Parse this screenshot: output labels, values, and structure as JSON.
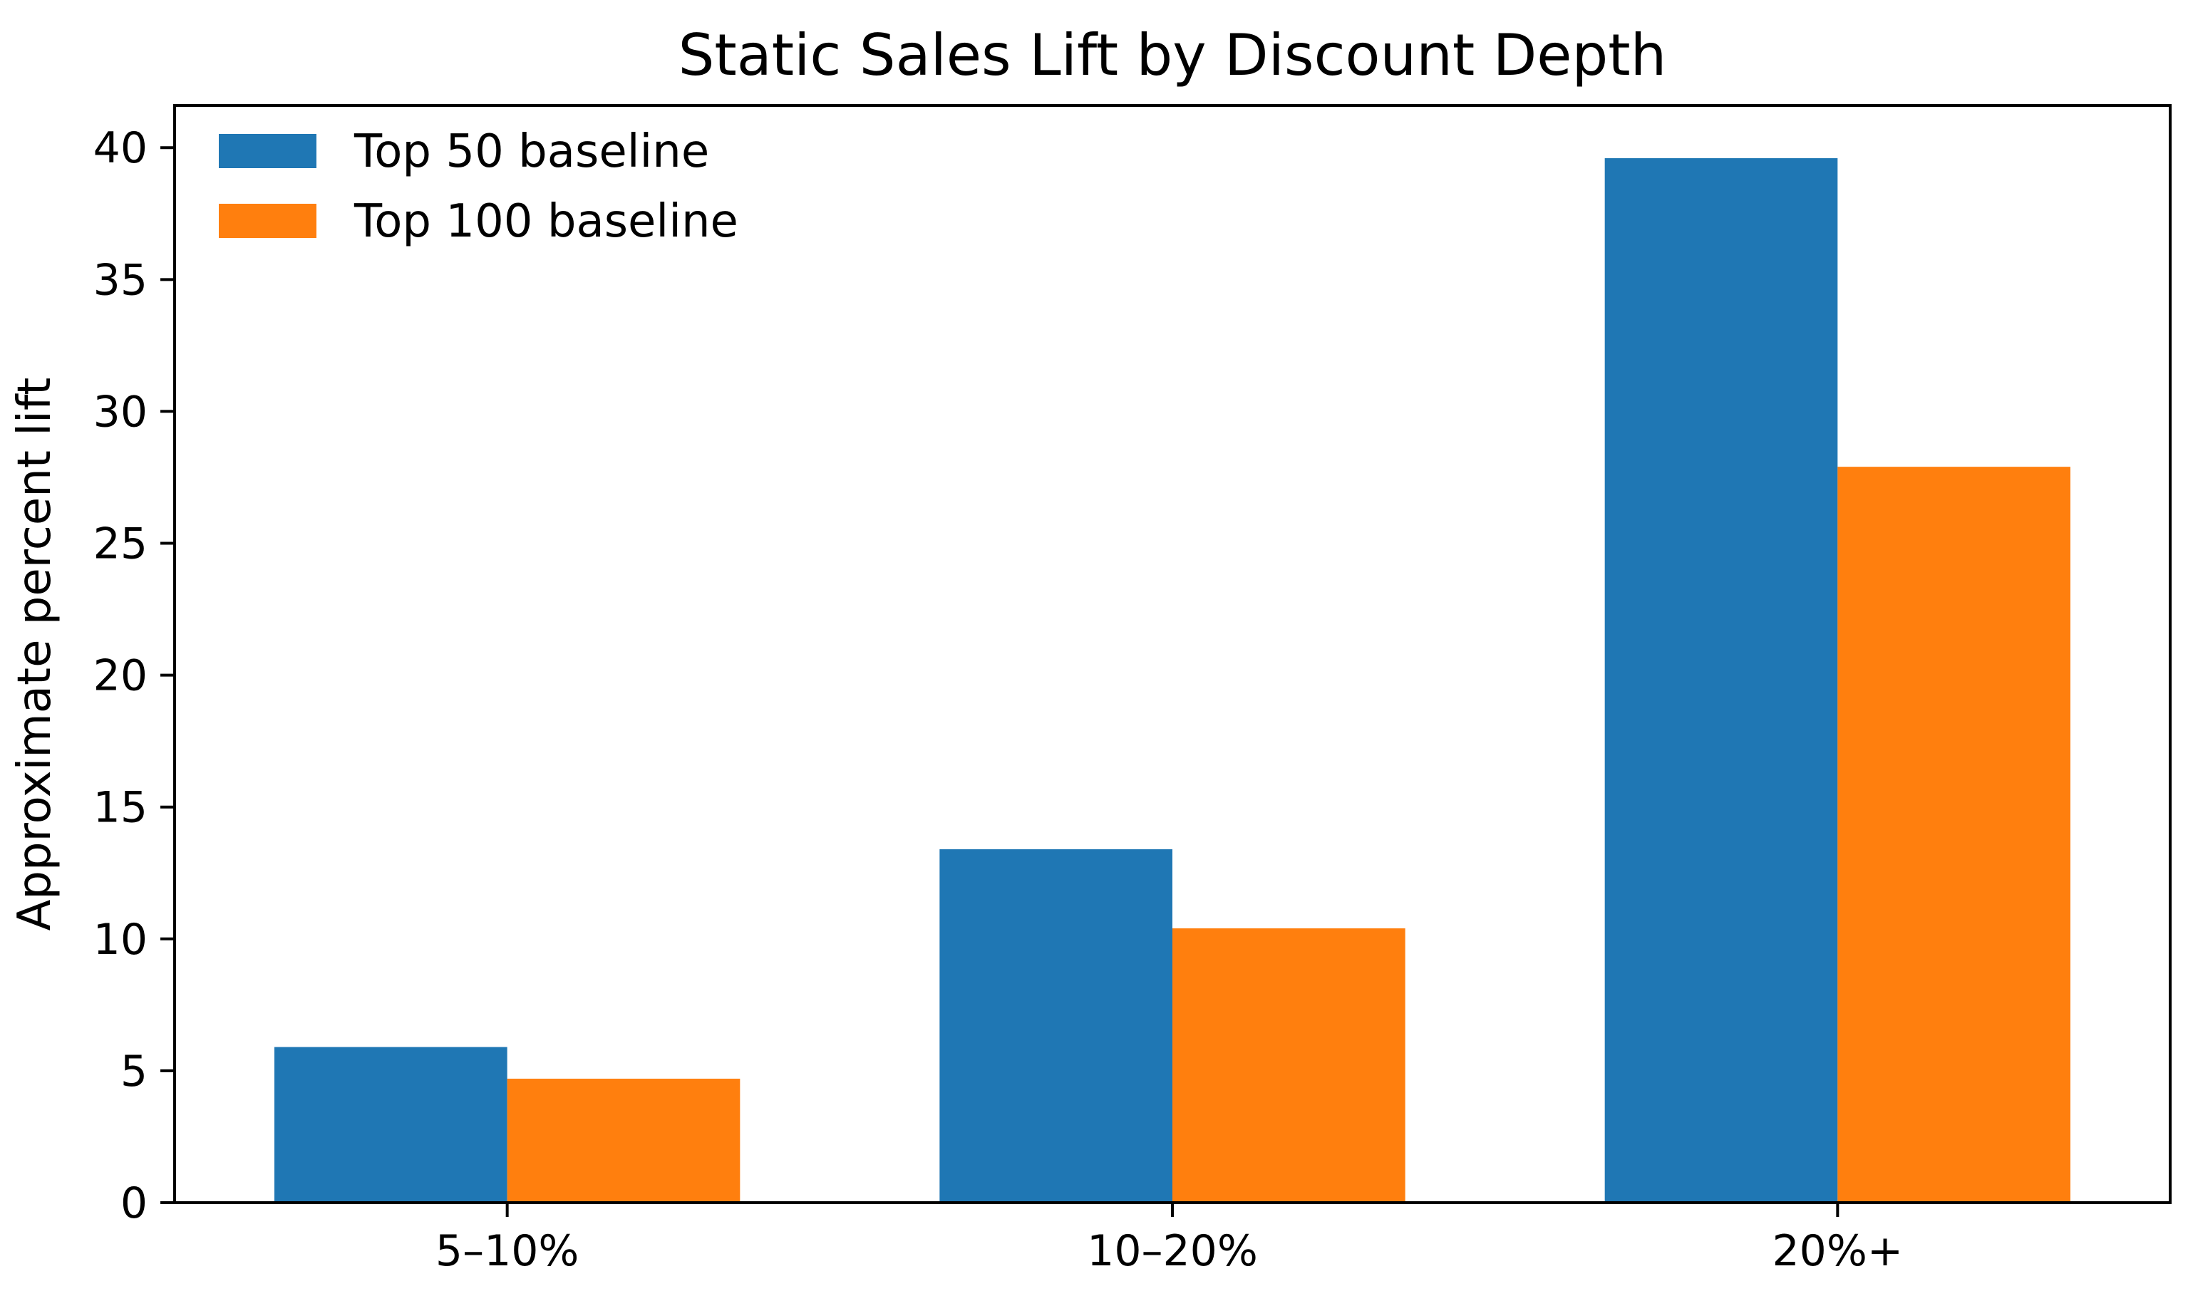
{
  "chart_data": {
    "type": "bar",
    "title": "Static Sales Lift by Discount Depth",
    "xlabel": "",
    "ylabel": "Approximate percent lift",
    "categories": [
      "5–10%",
      "10–20%",
      "20%+"
    ],
    "series": [
      {
        "name": "Top 50 baseline",
        "values": [
          5.9,
          13.4,
          39.6
        ],
        "color": "#1f77b4"
      },
      {
        "name": "Top 100 baseline",
        "values": [
          4.7,
          10.4,
          27.9
        ],
        "color": "#ff7f0e"
      }
    ],
    "ylim": [
      0,
      41.6
    ],
    "yticks": [
      0,
      5,
      10,
      15,
      20,
      25,
      30,
      35,
      40
    ],
    "grid": false,
    "legend_position": "top-left"
  }
}
